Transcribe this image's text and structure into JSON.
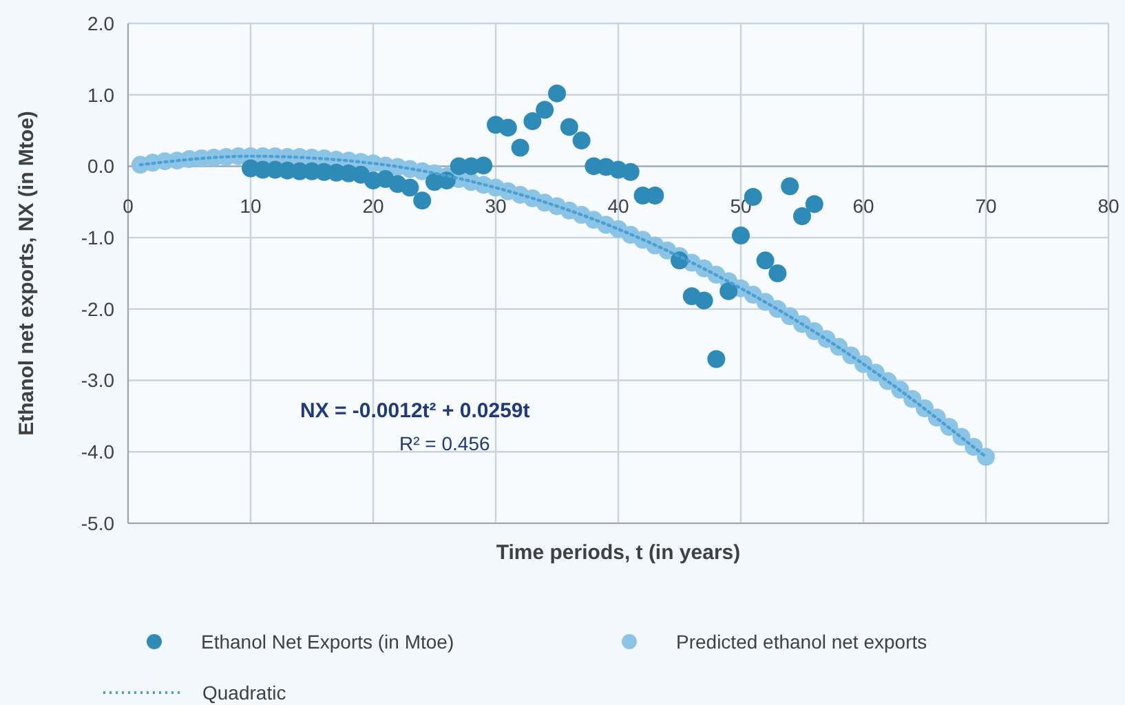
{
  "chart_data": {
    "type": "scatter",
    "xlabel": "Time periods, t (in years)",
    "ylabel": "Ethanol net exports, NX (in Mtoe)",
    "xlim": [
      0,
      80
    ],
    "xticks": [
      0,
      10,
      20,
      30,
      40,
      50,
      60,
      70,
      80
    ],
    "ylim": [
      -5,
      2
    ],
    "yticks": [
      {
        "value": -5,
        "label": "-5.0"
      },
      {
        "value": -4,
        "label": "-4.0"
      },
      {
        "value": -3,
        "label": "-3.0"
      },
      {
        "value": -2,
        "label": "-2.0"
      },
      {
        "value": -1,
        "label": "-1.0"
      },
      {
        "value": 0,
        "label": "0.0"
      },
      {
        "value": 1,
        "label": "1.0"
      },
      {
        "value": 2,
        "label": "2.0"
      }
    ],
    "grid": true,
    "legend": "bottom",
    "annotations": [
      "NX = -0.0012t² + 0.0259t",
      "R² = 0.456"
    ],
    "series": [
      {
        "name": "Ethanol Net Exports (in Mtoe)",
        "color": "#2e8bb8",
        "marker": "circle",
        "x": [
          10,
          11,
          12,
          13,
          14,
          15,
          16,
          17,
          18,
          19,
          20,
          21,
          22,
          23,
          24,
          25,
          26,
          27,
          28,
          29,
          30,
          31,
          32,
          33,
          34,
          35,
          36,
          37,
          38,
          39,
          40,
          41,
          42,
          43,
          45,
          46,
          47,
          48,
          49,
          50,
          51,
          52,
          53,
          54,
          55,
          56
        ],
        "values": [
          -0.03,
          -0.05,
          -0.05,
          -0.06,
          -0.07,
          -0.07,
          -0.08,
          -0.09,
          -0.1,
          -0.12,
          -0.2,
          -0.18,
          -0.25,
          -0.3,
          -0.48,
          -0.22,
          -0.2,
          0.0,
          0.0,
          0.01,
          0.58,
          0.54,
          0.26,
          0.63,
          0.79,
          1.02,
          0.55,
          0.36,
          0.0,
          -0.01,
          -0.05,
          -0.08,
          -0.41,
          -0.41,
          -1.32,
          -1.82,
          -1.88,
          -2.7,
          -1.75,
          -0.97,
          -0.43,
          -1.32,
          -1.5,
          -0.28,
          -0.7,
          -0.53
        ]
      },
      {
        "name": "Predicted ethanol net exports",
        "color": "#8cc4e6",
        "marker": "circle",
        "x": [
          1,
          2,
          3,
          4,
          5,
          6,
          7,
          8,
          9,
          10,
          11,
          12,
          13,
          14,
          15,
          16,
          17,
          18,
          19,
          20,
          21,
          22,
          23,
          24,
          25,
          26,
          27,
          28,
          29,
          30,
          31,
          32,
          33,
          34,
          35,
          36,
          37,
          38,
          39,
          40,
          41,
          42,
          43,
          44,
          45,
          46,
          47,
          48,
          49,
          50,
          51,
          52,
          53,
          54,
          55,
          56,
          57,
          58,
          59,
          60,
          61,
          62,
          63,
          64,
          65,
          66,
          67,
          68,
          69,
          70
        ],
        "values": [
          0.02,
          0.05,
          0.07,
          0.08,
          0.1,
          0.11,
          0.12,
          0.13,
          0.14,
          0.14,
          0.14,
          0.14,
          0.13,
          0.13,
          0.12,
          0.11,
          0.09,
          0.08,
          0.06,
          0.04,
          0.01,
          -0.01,
          -0.04,
          -0.07,
          -0.1,
          -0.14,
          -0.18,
          -0.22,
          -0.26,
          -0.3,
          -0.35,
          -0.4,
          -0.45,
          -0.51,
          -0.56,
          -0.62,
          -0.68,
          -0.75,
          -0.82,
          -0.88,
          -0.96,
          -1.03,
          -1.11,
          -1.18,
          -1.26,
          -1.35,
          -1.43,
          -1.52,
          -1.61,
          -1.71,
          -1.8,
          -1.9,
          -2.0,
          -2.1,
          -2.21,
          -2.31,
          -2.42,
          -2.53,
          -2.65,
          -2.77,
          -2.89,
          -3.01,
          -3.13,
          -3.26,
          -3.39,
          -3.52,
          -3.65,
          -3.79,
          -3.93,
          -4.07
        ]
      },
      {
        "name": "Quadratic",
        "type": "line",
        "line_style": "dotted",
        "marker": "none",
        "color": "#4a9fd4",
        "x": [
          1,
          10,
          20,
          30,
          40,
          50,
          60,
          70
        ],
        "values": [
          0.02,
          0.14,
          0.04,
          -0.3,
          -0.88,
          -1.71,
          -2.77,
          -4.07
        ]
      }
    ]
  }
}
